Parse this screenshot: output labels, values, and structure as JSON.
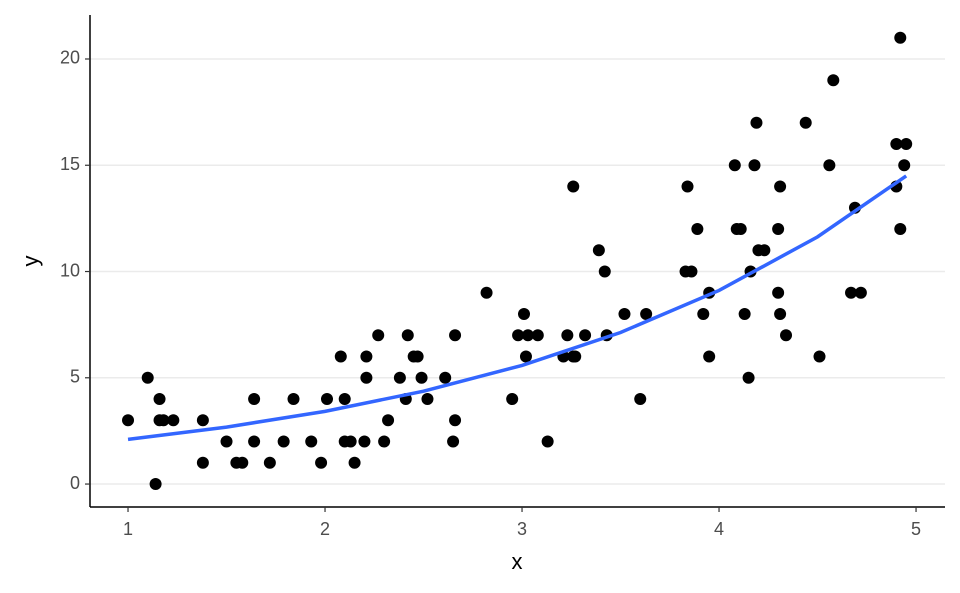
{
  "chart_data": {
    "type": "scatter",
    "x_label": "x",
    "y_label": "y",
    "xlim": [
      0.807,
      5.147
    ],
    "ylim": [
      -1.08,
      22.07
    ],
    "xticks": [
      1,
      2,
      3,
      4,
      5
    ],
    "yticks": [
      0,
      5,
      10,
      15,
      20
    ],
    "grid": "horizontal",
    "points": {
      "color": "#000000",
      "x": [
        1.0,
        1.1,
        1.14,
        1.16,
        1.16,
        1.18,
        1.23,
        1.38,
        1.38,
        1.5,
        1.55,
        1.58,
        1.64,
        1.64,
        1.72,
        1.79,
        1.84,
        1.93,
        1.98,
        2.01,
        2.08,
        2.1,
        2.1,
        2.13,
        2.15,
        2.2,
        2.21,
        2.21,
        2.27,
        2.3,
        2.32,
        2.38,
        2.41,
        2.42,
        2.45,
        2.47,
        2.49,
        2.52,
        2.61,
        2.65,
        2.66,
        2.66,
        2.82,
        2.95,
        2.98,
        3.01,
        3.02,
        3.03,
        3.08,
        3.13,
        3.21,
        3.23,
        3.26,
        3.26,
        3.27,
        3.32,
        3.39,
        3.42,
        3.43,
        3.52,
        3.6,
        3.63,
        3.83,
        3.84,
        3.86,
        3.89,
        3.92,
        3.95,
        3.95,
        4.08,
        4.09,
        4.11,
        4.13,
        4.15,
        4.16,
        4.18,
        4.19,
        4.2,
        4.23,
        4.3,
        4.31,
        4.3,
        4.31,
        4.34,
        4.44,
        4.51,
        4.56,
        4.58,
        4.67,
        4.69,
        4.72,
        4.9,
        4.9,
        4.92,
        4.92,
        4.94,
        4.95
      ],
      "y": [
        3,
        5,
        0,
        4,
        3,
        3,
        3,
        3,
        1,
        2,
        1,
        1,
        4,
        2,
        1,
        2,
        4,
        2,
        1,
        4,
        6,
        4,
        2,
        2,
        1,
        2,
        6,
        5,
        7,
        2,
        3,
        5,
        4,
        7,
        6,
        6,
        5,
        4,
        5,
        2,
        7,
        3,
        9,
        4,
        7,
        8,
        6,
        7,
        7,
        2,
        6,
        7,
        14,
        6,
        6,
        7,
        11,
        10,
        7,
        8,
        4,
        8,
        10,
        14,
        10,
        12,
        8,
        6,
        9,
        15,
        12,
        12,
        8,
        5,
        10,
        15,
        17,
        11,
        11,
        12,
        14,
        9,
        8,
        7,
        17,
        6,
        15,
        19,
        9,
        13,
        9,
        16,
        14,
        12,
        21,
        15,
        16
      ]
    },
    "fit": {
      "color": "#3366ff",
      "x": [
        1.0,
        1.5,
        2.0,
        2.5,
        3.0,
        3.5,
        4.0,
        4.5,
        4.95
      ],
      "y": [
        2.1,
        2.68,
        3.42,
        4.37,
        5.58,
        7.13,
        9.11,
        11.63,
        14.5
      ]
    }
  }
}
